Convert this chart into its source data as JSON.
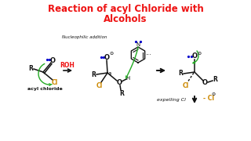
{
  "title_line1": "Reaction of acyl Chloride with",
  "title_line2": "Alcohols",
  "title_color": "#ee1111",
  "title_fontsize": 8.5,
  "bg_color": "#ffffff",
  "nucleophilic_label": "Nucleophilic addition",
  "expelling_label": "expelling Cl",
  "minus_cl_label": "- Cl",
  "acyl_chloride_label": "acyl chloride",
  "roh_label": "ROH",
  "black": "#111111",
  "green": "#22aa22",
  "orange": "#cc8800",
  "red": "#ee1111",
  "blue": "#0000cc"
}
